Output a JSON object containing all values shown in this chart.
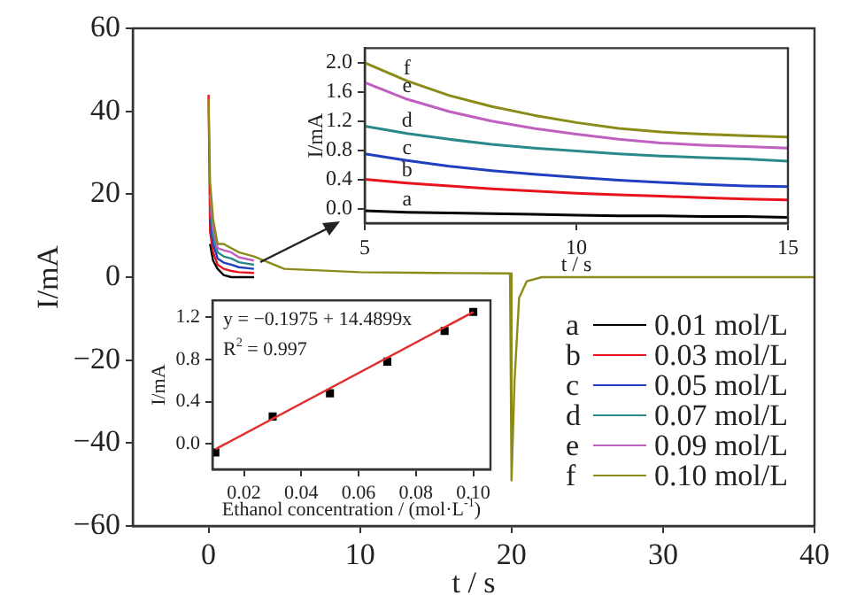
{
  "chart_data": [
    {
      "type": "line",
      "xlabel": "t / s",
      "ylabel": "I/mA",
      "xlim": [
        -5,
        40
      ],
      "ylim": [
        -60,
        60
      ],
      "xticks": [
        0,
        10,
        20,
        30,
        40
      ],
      "yticks": [
        {
          "value": -60,
          "label": "−60"
        },
        {
          "value": -40,
          "label": "−40"
        },
        {
          "value": -20,
          "label": "−20"
        },
        0,
        20,
        40,
        60
      ],
      "grid": false,
      "legend": "bottom right",
      "annotations": [
        "a",
        "b",
        "c",
        "d",
        "e",
        "f"
      ],
      "x": [
        0,
        0.1,
        0.3,
        0.6,
        1,
        1.5,
        2,
        3,
        5,
        10,
        15,
        19.9,
        20,
        20.2,
        20.5,
        21,
        22,
        30,
        40
      ],
      "series": [
        {
          "name": "0.01 mol/L",
          "color": "#000000",
          "values": [
            null,
            8,
            4,
            2,
            0.5,
            0,
            0,
            0,
            null,
            null,
            null,
            null,
            null,
            null,
            null,
            null,
            null,
            null,
            null
          ]
        },
        {
          "name": "0.03 mol/L",
          "color": "#e8141c",
          "values": [
            44,
            11,
            6,
            3,
            2,
            1.5,
            1.2,
            1,
            null,
            null,
            null,
            null,
            null,
            null,
            null,
            null,
            null,
            null,
            null
          ]
        },
        {
          "name": "0.05 mol/L",
          "color": "#1f3fbf",
          "values": [
            null,
            14,
            8,
            4.5,
            3.5,
            3,
            2.4,
            2,
            null,
            null,
            null,
            null,
            null,
            null,
            null,
            null,
            null,
            null,
            null
          ]
        },
        {
          "name": "0.07 mol/L",
          "color": "#2a8a8a",
          "values": [
            null,
            17,
            10,
            6,
            5,
            4.5,
            3.6,
            3,
            null,
            null,
            null,
            null,
            null,
            null,
            null,
            null,
            null,
            null,
            null
          ]
        },
        {
          "name": "0.09 mol/L",
          "color": "#c060c0",
          "values": [
            null,
            20,
            12,
            7,
            6.5,
            6,
            4.8,
            4,
            null,
            null,
            null,
            null,
            null,
            null,
            null,
            null,
            null,
            null,
            null
          ]
        },
        {
          "name": "0.10 mol/L",
          "color": "#8b8b1a",
          "values": [
            43,
            23,
            14,
            8,
            8,
            7,
            6,
            5,
            2,
            1.2,
            1,
            0.9,
            -49,
            -25,
            -5,
            -1,
            0,
            0,
            0
          ]
        }
      ]
    },
    {
      "type": "line",
      "xlabel": "t / s",
      "ylabel": "I/mA",
      "xlim": [
        5,
        15
      ],
      "ylim": [
        -0.2,
        2.2
      ],
      "xticks": [
        5,
        10,
        15
      ],
      "yticks": [
        {
          "value": 0,
          "label": "0.0"
        },
        {
          "value": 0.4,
          "label": "0.4"
        },
        {
          "value": 0.8,
          "label": "0.8"
        },
        {
          "value": 1.2,
          "label": "1.2"
        },
        {
          "value": 1.6,
          "label": "1.6"
        },
        {
          "value": 2,
          "label": "2.0"
        }
      ],
      "grid": false,
      "annotations": [
        "a",
        "b",
        "c",
        "d",
        "e",
        "f"
      ],
      "x": [
        5,
        6,
        7,
        8,
        9,
        10,
        11,
        12,
        13,
        14,
        15
      ],
      "series": [
        {
          "color": "#000000",
          "values": [
            -0.03,
            -0.05,
            -0.06,
            -0.07,
            -0.08,
            -0.09,
            -0.1,
            -0.1,
            -0.11,
            -0.11,
            -0.12
          ]
        },
        {
          "color": "#e8141c",
          "values": [
            0.4,
            0.35,
            0.31,
            0.27,
            0.24,
            0.21,
            0.19,
            0.17,
            0.15,
            0.13,
            0.12
          ]
        },
        {
          "color": "#1f3fbf",
          "values": [
            0.75,
            0.66,
            0.58,
            0.52,
            0.47,
            0.43,
            0.39,
            0.36,
            0.33,
            0.31,
            0.3
          ]
        },
        {
          "color": "#2a8a8a",
          "values": [
            1.13,
            1.03,
            0.95,
            0.88,
            0.83,
            0.79,
            0.75,
            0.72,
            0.7,
            0.68,
            0.65
          ]
        },
        {
          "color": "#c060c0",
          "values": [
            1.73,
            1.5,
            1.33,
            1.2,
            1.1,
            1.02,
            0.95,
            0.9,
            0.87,
            0.85,
            0.83
          ]
        },
        {
          "color": "#8b8b1a",
          "values": [
            2,
            1.75,
            1.55,
            1.4,
            1.28,
            1.18,
            1.1,
            1.05,
            1.02,
            1,
            0.98
          ]
        }
      ]
    },
    {
      "type": "scatter",
      "xlabel": "Ethanol concentration / (mol·L$^{-1}$)",
      "ylabel": "I/mA",
      "xlim": [
        0.009,
        0.106
      ],
      "ylim": [
        -0.24,
        1.36
      ],
      "xticks": [
        0.02,
        0.04,
        0.06,
        0.08,
        {
          "value": 0.1,
          "label": "0.10"
        }
      ],
      "yticks": [
        {
          "value": 0,
          "label": "0.0"
        },
        {
          "value": 0.4,
          "label": "0.4"
        },
        {
          "value": 0.8,
          "label": "0.8"
        },
        {
          "value": 1.2,
          "label": "1.2"
        }
      ],
      "grid": false,
      "annotations": [
        "y = −0.1975 + 14.4899x",
        "R$^{2}$ = 0.997"
      ],
      "x": [
        0.01,
        0.03,
        0.05,
        0.07,
        0.09,
        0.1
      ],
      "series": [
        {
          "type": "scatter",
          "marker": "square",
          "color": "#000000",
          "values": [
            -0.08,
            0.26,
            0.48,
            0.78,
            1.07,
            1.25
          ]
        },
        {
          "type": "line",
          "color": "#e03030",
          "x": [
            0.01,
            0.1
          ],
          "values": [
            -0.05,
            1.25
          ]
        }
      ]
    }
  ]
}
